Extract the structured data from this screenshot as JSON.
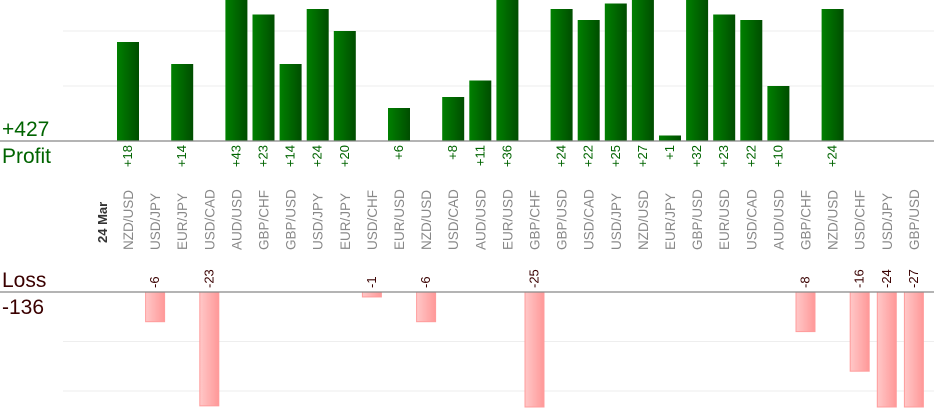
{
  "chart_data": {
    "type": "bar",
    "date_label": "24 Mar",
    "profit_label": "Profit",
    "profit_total": "+427",
    "loss_label": "Loss",
    "loss_total": "-136",
    "colors": {
      "profit": "#006400",
      "profit_text": "#006400",
      "loss": "#ffaaaa",
      "loss_text": "#3a0000",
      "pair_text": "#888888"
    },
    "grid": true,
    "categories": [
      "NZD/USD",
      "USD/JPY",
      "EUR/JPY",
      "USD/CAD",
      "AUD/USD",
      "GBP/CHF",
      "GBP/USD",
      "USD/JPY",
      "EUR/JPY",
      "USD/CHF",
      "EUR/USD",
      "NZD/USD",
      "USD/CAD",
      "AUD/USD",
      "EUR/USD",
      "GBP/CHF",
      "GBP/USD",
      "USD/CAD",
      "USD/JPY",
      "NZD/USD",
      "EUR/JPY",
      "GBP/USD",
      "EUR/USD",
      "USD/CAD",
      "AUD/USD",
      "GBP/CHF",
      "NZD/USD",
      "USD/CHF",
      "USD/JPY",
      "GBP/USD"
    ],
    "values": [
      18,
      -6,
      14,
      -23,
      43,
      23,
      14,
      24,
      20,
      -1,
      6,
      -6,
      8,
      11,
      36,
      -25,
      24,
      22,
      25,
      27,
      1,
      32,
      23,
      22,
      10,
      -8,
      24,
      -16,
      -24,
      -27
    ],
    "value_labels": [
      "+18",
      "-6",
      "+14",
      "-23",
      "+43",
      "+23",
      "+14",
      "+24",
      "+20",
      "-1",
      "+6",
      "-6",
      "+8",
      "+11",
      "+36",
      "-25",
      "+24",
      "+22",
      "+25",
      "+27",
      "+1",
      "+32",
      "+23",
      "+22",
      "+10",
      "-8",
      "+24",
      "-16",
      "-24",
      "-27"
    ]
  }
}
